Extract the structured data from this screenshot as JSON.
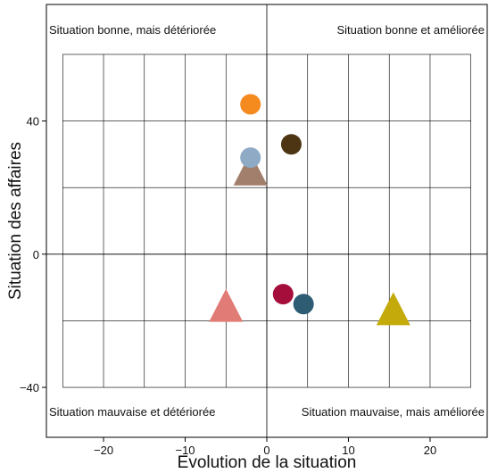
{
  "chart_data": {
    "type": "scatter",
    "xlabel": "Evolution de la situation",
    "ylabel": "Situation des affaires",
    "xlim": [
      -27,
      27
    ],
    "ylim": [
      -55,
      75
    ],
    "xticks": [
      -20,
      -10,
      0,
      10,
      20
    ],
    "xtick_labels": [
      "−20",
      "−10",
      "0",
      "10",
      "20"
    ],
    "yticks": [
      -40,
      0,
      40
    ],
    "ytick_labels": [
      "−40",
      "0",
      "40"
    ],
    "x_minor_ticks": [
      -25,
      -20,
      -15,
      -10,
      -5,
      0,
      5,
      10,
      15,
      20,
      25
    ],
    "y_minor_ticks": [
      -40,
      -20,
      0,
      20,
      40,
      60
    ],
    "grid": true,
    "quadrant_labels": {
      "top_left": "Situation bonne, mais détériorée",
      "top_right": "Situation bonne et améliorée",
      "bottom_left": "Situation mauvaise et détériorée",
      "bottom_right": "Situation mauvaise, mais améliorée"
    },
    "points": [
      {
        "x": -2,
        "y": 45,
        "shape": "circle",
        "color": "#f58a1f"
      },
      {
        "x": 3,
        "y": 33,
        "shape": "circle",
        "color": "#4d3513"
      },
      {
        "x": -2,
        "y": 25.5,
        "shape": "triangle",
        "color": "#a27e6c"
      },
      {
        "x": -2,
        "y": 29,
        "shape": "circle",
        "color": "#8eaac4"
      },
      {
        "x": 2,
        "y": -12,
        "shape": "circle",
        "color": "#a50d3a"
      },
      {
        "x": 4.5,
        "y": -15,
        "shape": "circle",
        "color": "#2d5c73"
      },
      {
        "x": -5,
        "y": -15.5,
        "shape": "triangle",
        "color": "#e07b76"
      },
      {
        "x": 15.5,
        "y": -16.5,
        "shape": "triangle",
        "color": "#c4aa0b"
      }
    ]
  }
}
